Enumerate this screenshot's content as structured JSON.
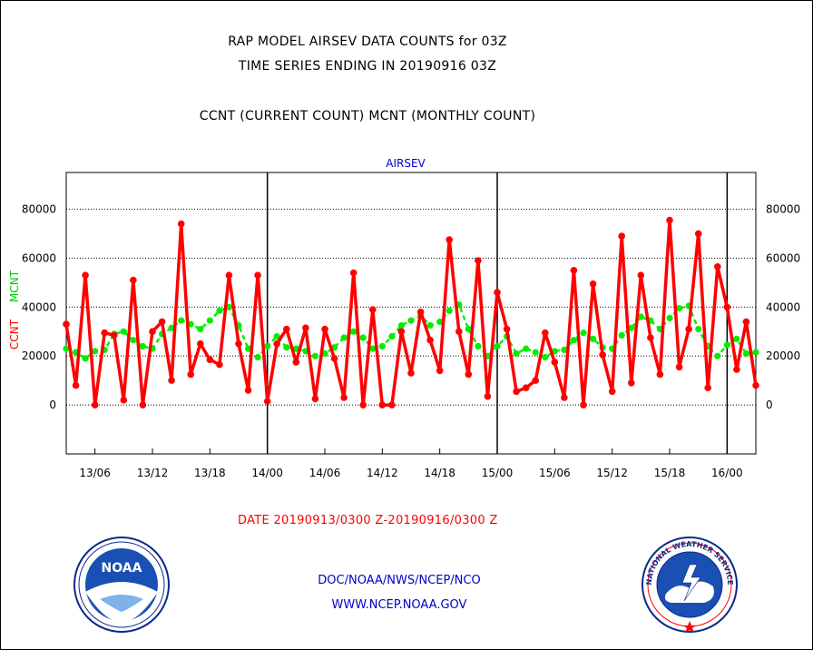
{
  "header": {
    "line1": "RAP MODEL AIRSEV DATA COUNTS for 03Z",
    "line2": "TIME SERIES ENDING IN 20190916 03Z",
    "line3": "CCNT (CURRENT COUNT) MCNT (MONTHLY COUNT)"
  },
  "footer": {
    "date_range": "DATE 20190913/0300 Z-20190916/0300 Z",
    "org": "DOC/NOAA/NWS/NCEP/NCO",
    "url": "WWW.NCEP.NOAA.GOV"
  },
  "logos": {
    "left_text": "NOAA",
    "right_ring": "NATIONAL WEATHER SERVICE"
  },
  "colors": {
    "ccnt": "#ff0000",
    "mcnt": "#00ee00",
    "title_blue": "#0000cc"
  },
  "chart_data": {
    "type": "line",
    "title": "AIRSEV",
    "ylabel_ccnt": "CCNT",
    "ylabel_mcnt": "MCNT",
    "ylim": [
      -20000,
      95000
    ],
    "yticks": [
      0,
      20000,
      40000,
      60000,
      80000
    ],
    "ytick_labels": [
      "0",
      "20000",
      "40000",
      "60000",
      "80000"
    ],
    "xlim_hours": [
      -21,
      51
    ],
    "x_ticks": [
      {
        "hour": -18,
        "label": "13/06"
      },
      {
        "hour": -12,
        "label": "13/12"
      },
      {
        "hour": -6,
        "label": "13/18"
      },
      {
        "hour": 0,
        "label": "14/00"
      },
      {
        "hour": 6,
        "label": "14/06"
      },
      {
        "hour": 12,
        "label": "14/12"
      },
      {
        "hour": 18,
        "label": "14/18"
      },
      {
        "hour": 24,
        "label": "15/00"
      },
      {
        "hour": 30,
        "label": "15/06"
      },
      {
        "hour": 36,
        "label": "15/12"
      },
      {
        "hour": 42,
        "label": "15/18"
      },
      {
        "hour": 48,
        "label": "16/00"
      }
    ],
    "day_boundaries": [
      0,
      24,
      48
    ],
    "x_start_hour": -21,
    "x_step_hours": 1,
    "grid": "horizontal dotted",
    "series": [
      {
        "name": "CCNT",
        "values": [
          33000,
          8000,
          53000,
          0,
          29500,
          28500,
          2000,
          51000,
          0,
          30000,
          34000,
          10000,
          74000,
          12500,
          25000,
          18500,
          16500,
          53000,
          25000,
          6000,
          53000,
          1500,
          25000,
          31000,
          17500,
          31500,
          2500,
          31000,
          19000,
          3000,
          54000,
          0,
          39000,
          0,
          0,
          30000,
          13000,
          38000,
          26500,
          14000,
          67500,
          30000,
          12500,
          59000,
          3500,
          46000,
          31000,
          5500,
          7000,
          10000,
          29500,
          17500,
          3000,
          55000,
          0,
          49500,
          20500,
          5500,
          69000,
          9000,
          53000,
          27500,
          12500,
          75500,
          15500,
          31000,
          70000,
          7000,
          56500,
          40000,
          14500,
          34000,
          8000
        ]
      },
      {
        "name": "MCNT",
        "values": [
          23000,
          21500,
          19000,
          22000,
          22500,
          29000,
          30000,
          26500,
          24000,
          23000,
          29000,
          31500,
          34500,
          33000,
          31000,
          34500,
          38500,
          40000,
          32500,
          23000,
          19500,
          24000,
          28000,
          23500,
          23000,
          22000,
          20000,
          21000,
          23500,
          27500,
          30000,
          27500,
          23000,
          24000,
          28000,
          32500,
          34500,
          36500,
          32500,
          34000,
          38500,
          41000,
          31000,
          24000,
          20000,
          24000,
          28000,
          21000,
          23000,
          21500,
          19500,
          22000,
          22500,
          26500,
          29500,
          27000,
          23500,
          23000,
          28500,
          31500,
          36000,
          34500,
          31000,
          35500,
          39500,
          40500,
          31000,
          24000,
          20000,
          24500,
          27000,
          21000,
          21500
        ]
      }
    ]
  }
}
